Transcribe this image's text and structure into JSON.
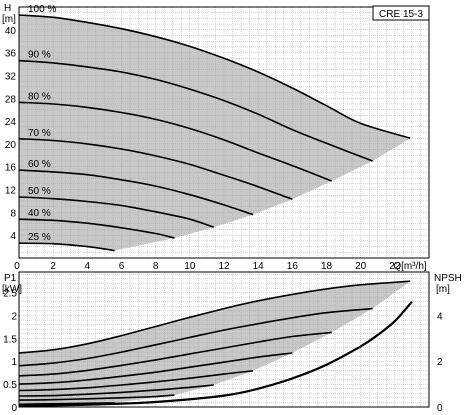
{
  "chart_data": [
    {
      "type": "line",
      "title": "CRE 15-3",
      "xlabel": "Q[m³/h]",
      "ylabel": "H",
      "yunit": "[m]",
      "xlim": [
        0,
        24
      ],
      "ylim": [
        0,
        44
      ],
      "xticks": [
        "0",
        "2",
        "4",
        "6",
        "8",
        "10",
        "12",
        "14",
        "16",
        "18",
        "20",
        "22"
      ],
      "yticks": [
        "4",
        "8",
        "12",
        "16",
        "20",
        "24",
        "28",
        "32",
        "36",
        "40"
      ],
      "grid": true,
      "shaded_region": "operating range between 100 % curve and minimum-speed limit line",
      "series": [
        {
          "name": "100 %",
          "x": [
            0,
            2,
            4,
            6,
            8,
            10,
            12,
            14,
            16,
            18,
            20,
            22.9
          ],
          "y": [
            42.6,
            42.2,
            41.3,
            40.2,
            38.8,
            37.1,
            35.0,
            32.6,
            29.8,
            26.7,
            23.6,
            21.0
          ]
        },
        {
          "name": "90 %",
          "x": [
            0,
            2,
            4,
            6,
            8,
            10,
            12,
            14,
            16,
            18,
            20.7
          ],
          "y": [
            34.6,
            34.2,
            33.5,
            32.6,
            31.3,
            29.6,
            27.6,
            25.2,
            22.5,
            20.1,
            17.0
          ]
        },
        {
          "name": "80 %",
          "x": [
            0,
            2,
            4,
            6,
            8,
            10,
            12,
            14,
            16,
            18.3
          ],
          "y": [
            27.3,
            27.0,
            26.4,
            25.5,
            24.3,
            22.7,
            20.7,
            18.4,
            16.2,
            13.5
          ]
        },
        {
          "name": "70 %",
          "x": [
            0,
            2,
            4,
            6,
            8,
            10,
            12,
            14,
            16
          ],
          "y": [
            20.9,
            20.6,
            20.0,
            19.1,
            17.9,
            16.4,
            14.5,
            12.5,
            10.3
          ]
        },
        {
          "name": "60 %",
          "x": [
            0,
            2,
            4,
            6,
            8,
            10,
            12,
            13.7
          ],
          "y": [
            15.4,
            15.1,
            14.6,
            13.7,
            12.6,
            11.1,
            9.3,
            7.6
          ]
        },
        {
          "name": "50 %",
          "x": [
            0,
            2,
            4,
            6,
            8,
            10,
            11.4
          ],
          "y": [
            10.7,
            10.4,
            9.9,
            9.2,
            8.1,
            6.8,
            5.4
          ]
        },
        {
          "name": "40 %",
          "x": [
            0,
            2,
            4,
            6,
            8,
            9.1
          ],
          "y": [
            6.8,
            6.6,
            6.1,
            5.3,
            4.3,
            3.5
          ]
        },
        {
          "name": "25 %",
          "x": [
            0,
            2,
            4,
            5.6
          ],
          "y": [
            2.6,
            2.5,
            2.0,
            1.3
          ]
        }
      ],
      "limit_line": {
        "x": [
          5.6,
          9.1,
          11.4,
          13.7,
          16,
          18.3,
          20.7,
          22.9
        ],
        "y": [
          1.3,
          3.5,
          5.4,
          7.6,
          10.3,
          13.5,
          17.0,
          21.0
        ]
      }
    },
    {
      "type": "line",
      "ylabel": "P1",
      "yunit": "[kW]",
      "y2label": "NPSH",
      "y2unit": "[m]",
      "xlim": [
        0,
        24
      ],
      "ylim": [
        0,
        2.95
      ],
      "y2lim": [
        0,
        5.9
      ],
      "yticks": [
        "0",
        "0.5",
        "1",
        "1.5",
        "2",
        "2.5"
      ],
      "y2ticks": [
        "0",
        "2",
        "4"
      ],
      "grid": true,
      "power_series": [
        {
          "name": "100 %",
          "x": [
            0,
            2,
            4,
            6,
            8,
            10,
            12,
            14,
            16,
            18,
            20,
            22.9
          ],
          "y": [
            1.18,
            1.25,
            1.38,
            1.56,
            1.76,
            1.96,
            2.15,
            2.32,
            2.46,
            2.58,
            2.67,
            2.75
          ]
        },
        {
          "name": "90 %",
          "x": [
            0,
            2,
            4,
            6,
            8,
            10,
            12,
            14,
            16,
            18,
            20.7
          ],
          "y": [
            0.9,
            0.96,
            1.06,
            1.2,
            1.36,
            1.52,
            1.68,
            1.82,
            1.95,
            2.06,
            2.15
          ]
        },
        {
          "name": "80 %",
          "x": [
            0,
            2,
            4,
            6,
            8,
            10,
            12,
            14,
            16,
            18.3
          ],
          "y": [
            0.68,
            0.72,
            0.8,
            0.91,
            1.03,
            1.16,
            1.29,
            1.42,
            1.54,
            1.63
          ]
        },
        {
          "name": "70 %",
          "x": [
            0,
            2,
            4,
            6,
            8,
            10,
            12,
            14,
            16
          ],
          "y": [
            0.5,
            0.53,
            0.59,
            0.67,
            0.76,
            0.87,
            0.98,
            1.09,
            1.18
          ]
        },
        {
          "name": "60 %",
          "x": [
            0,
            2,
            4,
            6,
            8,
            10,
            12,
            13.7
          ],
          "y": [
            0.36,
            0.38,
            0.42,
            0.48,
            0.55,
            0.63,
            0.72,
            0.79
          ]
        },
        {
          "name": "50 %",
          "x": [
            0,
            2,
            4,
            6,
            8,
            10,
            11.4
          ],
          "y": [
            0.24,
            0.25,
            0.28,
            0.32,
            0.37,
            0.43,
            0.48
          ]
        },
        {
          "name": "40 %",
          "x": [
            0,
            2,
            4,
            6,
            8,
            9.1
          ],
          "y": [
            0.15,
            0.16,
            0.18,
            0.2,
            0.23,
            0.26
          ]
        },
        {
          "name": "25 %",
          "x": [
            0,
            2,
            4,
            5.6
          ],
          "y": [
            0.06,
            0.07,
            0.08,
            0.09
          ]
        }
      ],
      "power_limit_line": {
        "x": [
          5.6,
          9.1,
          11.4,
          13.7,
          16,
          18.3,
          20.7,
          22.9
        ],
        "y": [
          0.09,
          0.26,
          0.48,
          0.79,
          1.18,
          1.63,
          2.15,
          2.75
        ]
      },
      "npsh": {
        "x": [
          0,
          4,
          8,
          12,
          14,
          16,
          18,
          20,
          21,
          22,
          23
        ],
        "y": [
          0.05,
          0.1,
          0.22,
          0.5,
          0.8,
          1.25,
          1.85,
          2.65,
          3.15,
          3.75,
          4.6
        ]
      }
    }
  ],
  "colors": {
    "fill": "#c8c8c8",
    "grid": "#a8a8a8",
    "curve": "#000000"
  }
}
